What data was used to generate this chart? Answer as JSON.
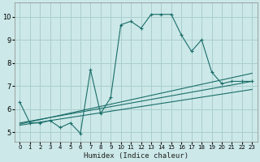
{
  "xlabel": "Humidex (Indice chaleur)",
  "bg_color": "#cce8e8",
  "grid_color": "#aacece",
  "line_color": "#1a6e6a",
  "xlim": [
    -0.5,
    23.5
  ],
  "ylim": [
    4.6,
    10.6
  ],
  "xticks": [
    0,
    1,
    2,
    3,
    4,
    5,
    6,
    7,
    8,
    9,
    10,
    11,
    12,
    13,
    14,
    15,
    16,
    17,
    18,
    19,
    20,
    21,
    22,
    23
  ],
  "yticks": [
    5,
    6,
    7,
    8,
    9,
    10
  ],
  "series1_x": [
    0,
    1,
    2,
    3,
    4,
    5,
    6,
    7,
    8,
    9,
    10,
    11,
    12,
    13,
    14,
    15,
    16,
    17,
    18,
    19,
    20,
    21,
    22,
    23
  ],
  "series1_y": [
    6.3,
    5.4,
    5.4,
    5.5,
    5.2,
    5.4,
    4.95,
    7.7,
    5.8,
    6.5,
    9.65,
    9.8,
    9.5,
    10.1,
    10.1,
    10.1,
    9.2,
    8.5,
    9.0,
    7.6,
    7.1,
    7.2,
    7.2,
    7.2
  ],
  "series2_x": [
    0,
    23
  ],
  "series2_y": [
    5.4,
    7.2
  ],
  "series3_x": [
    0,
    23
  ],
  "series3_y": [
    5.35,
    7.55
  ],
  "series4_x": [
    0,
    23
  ],
  "series4_y": [
    5.3,
    6.85
  ]
}
